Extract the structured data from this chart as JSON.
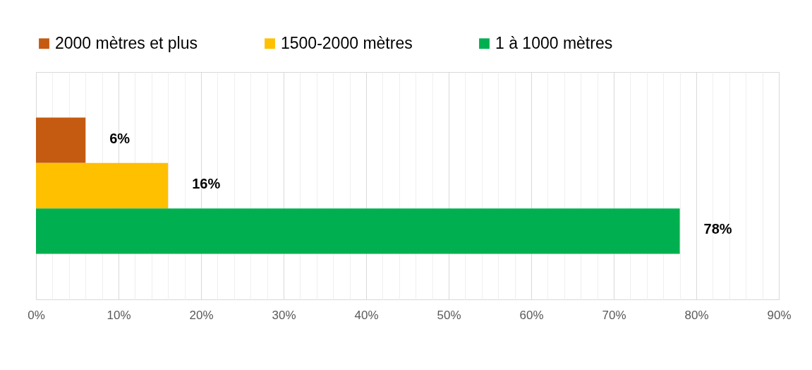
{
  "chart_data": {
    "type": "bar",
    "orientation": "horizontal",
    "categories": [
      null
    ],
    "series": [
      {
        "name": "2000 mètres et plus",
        "color": "#c55a11",
        "values": [
          6
        ],
        "value_labels": [
          "6%"
        ]
      },
      {
        "name": "1500-2000 mètres",
        "color": "#ffc000",
        "values": [
          16
        ],
        "value_labels": [
          "16%"
        ]
      },
      {
        "name": "1 à 1000 mètres",
        "color": "#00b050",
        "values": [
          78
        ],
        "value_labels": [
          "78%"
        ]
      }
    ],
    "xlim": [
      0,
      90
    ],
    "xticks": [
      {
        "value": 0,
        "label": "0%"
      },
      {
        "value": 2,
        "label": null
      },
      {
        "value": 4,
        "label": null
      },
      {
        "value": 6,
        "label": null
      },
      {
        "value": 8,
        "label": null
      },
      {
        "value": 10,
        "label": "10%"
      },
      {
        "value": 12,
        "label": null
      },
      {
        "value": 14,
        "label": null
      },
      {
        "value": 16,
        "label": null
      },
      {
        "value": 18,
        "label": null
      },
      {
        "value": 20,
        "label": "20%"
      },
      {
        "value": 22,
        "label": null
      },
      {
        "value": 24,
        "label": null
      },
      {
        "value": 26,
        "label": null
      },
      {
        "value": 28,
        "label": null
      },
      {
        "value": 30,
        "label": "30%"
      },
      {
        "value": 32,
        "label": null
      },
      {
        "value": 34,
        "label": null
      },
      {
        "value": 36,
        "label": null
      },
      {
        "value": 38,
        "label": null
      },
      {
        "value": 40,
        "label": "40%"
      },
      {
        "value": 42,
        "label": null
      },
      {
        "value": 44,
        "label": null
      },
      {
        "value": 46,
        "label": null
      },
      {
        "value": 48,
        "label": null
      },
      {
        "value": 50,
        "label": "50%"
      },
      {
        "value": 52,
        "label": null
      },
      {
        "value": 54,
        "label": null
      },
      {
        "value": 56,
        "label": null
      },
      {
        "value": 58,
        "label": null
      },
      {
        "value": 60,
        "label": "60%"
      },
      {
        "value": 62,
        "label": null
      },
      {
        "value": 64,
        "label": null
      },
      {
        "value": 66,
        "label": null
      },
      {
        "value": 68,
        "label": null
      },
      {
        "value": 70,
        "label": "70%"
      },
      {
        "value": 72,
        "label": null
      },
      {
        "value": 74,
        "label": null
      },
      {
        "value": 76,
        "label": null
      },
      {
        "value": 78,
        "label": null
      },
      {
        "value": 80,
        "label": "80%"
      },
      {
        "value": 82,
        "label": null
      },
      {
        "value": 84,
        "label": null
      },
      {
        "value": 86,
        "label": null
      },
      {
        "value": 88,
        "label": null
      },
      {
        "value": 90,
        "label": "90%"
      }
    ],
    "grid": "x",
    "legend": "top"
  }
}
